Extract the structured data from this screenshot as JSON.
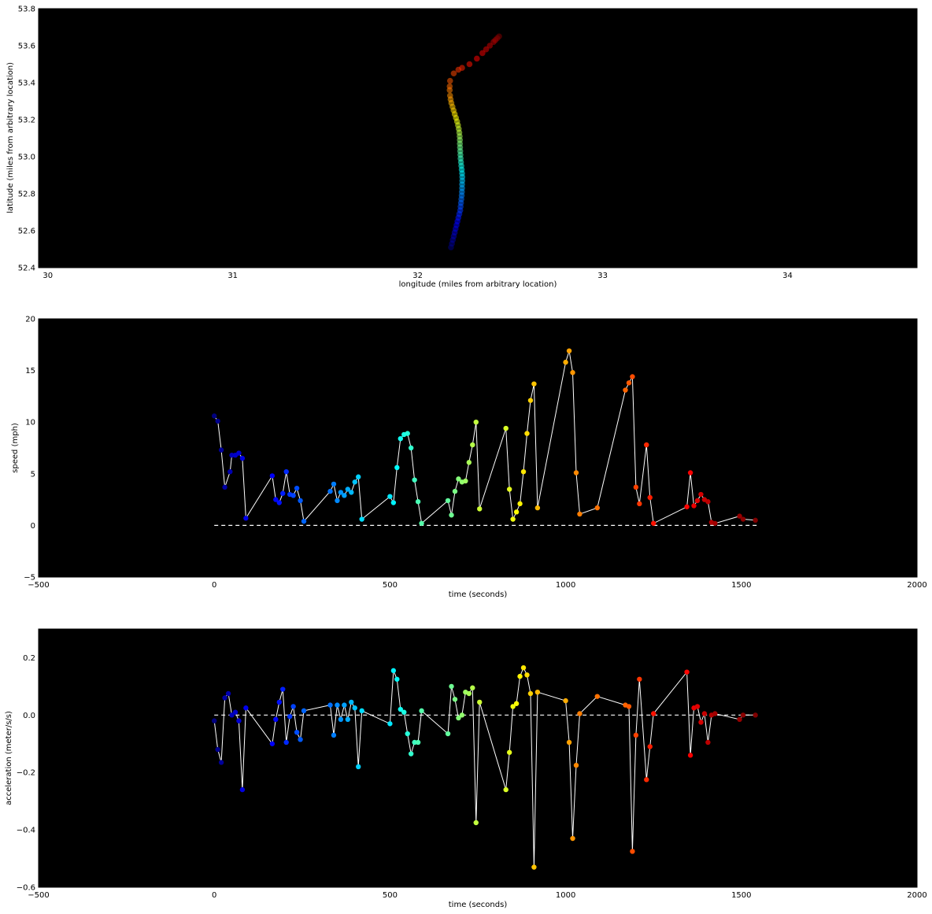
{
  "chart_data": [
    {
      "type": "scatter",
      "xlabel": "longitude (miles from arbitrary location)",
      "ylabel": "latitude (miles from arbitrary location)",
      "xlim": [
        29.95,
        34.7
      ],
      "ylim": [
        52.4,
        53.8
      ],
      "xticks": [
        30,
        31,
        32,
        33,
        34
      ],
      "yticks": [
        52.4,
        52.6,
        52.8,
        53.0,
        53.2,
        53.4,
        53.6,
        53.8
      ],
      "background": "#000000",
      "colormap": "jet",
      "grid": false,
      "points": [
        [
          32.18,
          52.51
        ],
        [
          32.185,
          52.53
        ],
        [
          32.19,
          52.55
        ],
        [
          32.195,
          52.57
        ],
        [
          32.2,
          52.59
        ],
        [
          32.205,
          52.61
        ],
        [
          32.21,
          52.63
        ],
        [
          32.215,
          52.65
        ],
        [
          32.22,
          52.67
        ],
        [
          32.225,
          52.69
        ],
        [
          32.23,
          52.71
        ],
        [
          32.232,
          52.73
        ],
        [
          32.234,
          52.75
        ],
        [
          32.236,
          52.77
        ],
        [
          32.238,
          52.79
        ],
        [
          32.239,
          52.81
        ],
        [
          32.24,
          52.83
        ],
        [
          32.24,
          52.85
        ],
        [
          32.241,
          52.87
        ],
        [
          32.241,
          52.89
        ],
        [
          32.24,
          52.91
        ],
        [
          32.238,
          52.93
        ],
        [
          32.236,
          52.95
        ],
        [
          32.234,
          52.97
        ],
        [
          32.232,
          52.99
        ],
        [
          32.231,
          53.01
        ],
        [
          32.23,
          53.03
        ],
        [
          32.229,
          53.05
        ],
        [
          32.228,
          53.07
        ],
        [
          32.228,
          53.09
        ],
        [
          32.227,
          53.11
        ],
        [
          32.225,
          53.13
        ],
        [
          32.222,
          53.15
        ],
        [
          32.218,
          53.17
        ],
        [
          32.213,
          53.19
        ],
        [
          32.207,
          53.21
        ],
        [
          32.2,
          53.23
        ],
        [
          32.194,
          53.25
        ],
        [
          32.188,
          53.27
        ],
        [
          32.182,
          53.29
        ],
        [
          32.178,
          53.31
        ],
        [
          32.175,
          53.33
        ],
        [
          32.173,
          53.36
        ],
        [
          32.173,
          53.38
        ],
        [
          32.175,
          53.41
        ],
        [
          32.195,
          53.45
        ],
        [
          32.22,
          53.47
        ],
        [
          32.24,
          53.48
        ],
        [
          32.28,
          53.5
        ],
        [
          32.32,
          53.53
        ],
        [
          32.35,
          53.56
        ],
        [
          32.37,
          53.58
        ],
        [
          32.39,
          53.6
        ],
        [
          32.41,
          53.62
        ],
        [
          32.42,
          53.63
        ],
        [
          32.43,
          53.64
        ],
        [
          32.44,
          53.65
        ]
      ]
    },
    {
      "type": "line",
      "xlabel": "time (seconds)",
      "ylabel": "speed (mph)",
      "xlim": [
        -500,
        2000
      ],
      "ylim": [
        -5,
        20
      ],
      "xticks": [
        -500,
        0,
        500,
        1000,
        1500,
        2000
      ],
      "yticks": [
        -5,
        0,
        5,
        10,
        15,
        20
      ],
      "background": "#000000",
      "line_color": "#ffffff",
      "reference_line": {
        "y": 0,
        "style": "dashed",
        "x_range": [
          0,
          1545
        ]
      },
      "colormap": "jet",
      "points": [
        [
          0,
          10.6
        ],
        [
          10,
          10.1
        ],
        [
          20,
          7.3
        ],
        [
          30,
          3.7
        ],
        [
          45,
          5.2
        ],
        [
          50,
          6.8
        ],
        [
          60,
          6.8
        ],
        [
          70,
          7.0
        ],
        [
          80,
          6.5
        ],
        [
          90,
          0.7
        ],
        [
          165,
          4.8
        ],
        [
          175,
          2.5
        ],
        [
          185,
          2.2
        ],
        [
          195,
          3.1
        ],
        [
          205,
          5.2
        ],
        [
          215,
          3.0
        ],
        [
          225,
          2.9
        ],
        [
          235,
          3.6
        ],
        [
          245,
          2.4
        ],
        [
          255,
          0.4
        ],
        [
          330,
          3.3
        ],
        [
          340,
          4.0
        ],
        [
          350,
          2.4
        ],
        [
          360,
          3.2
        ],
        [
          370,
          2.9
        ],
        [
          380,
          3.5
        ],
        [
          390,
          3.2
        ],
        [
          400,
          4.2
        ],
        [
          410,
          4.7
        ],
        [
          420,
          0.6
        ],
        [
          500,
          2.8
        ],
        [
          510,
          2.2
        ],
        [
          520,
          5.6
        ],
        [
          530,
          8.4
        ],
        [
          540,
          8.8
        ],
        [
          550,
          8.9
        ],
        [
          560,
          7.5
        ],
        [
          570,
          4.4
        ],
        [
          580,
          2.3
        ],
        [
          590,
          0.2
        ],
        [
          665,
          2.4
        ],
        [
          675,
          1.0
        ],
        [
          685,
          3.3
        ],
        [
          695,
          4.5
        ],
        [
          705,
          4.2
        ],
        [
          715,
          4.3
        ],
        [
          725,
          6.1
        ],
        [
          735,
          7.8
        ],
        [
          745,
          10.0
        ],
        [
          755,
          1.6
        ],
        [
          830,
          9.4
        ],
        [
          840,
          3.5
        ],
        [
          850,
          0.6
        ],
        [
          860,
          1.3
        ],
        [
          870,
          2.1
        ],
        [
          880,
          5.2
        ],
        [
          890,
          8.9
        ],
        [
          900,
          12.1
        ],
        [
          910,
          13.7
        ],
        [
          920,
          1.7
        ],
        [
          1000,
          15.8
        ],
        [
          1010,
          16.9
        ],
        [
          1020,
          14.8
        ],
        [
          1030,
          5.1
        ],
        [
          1040,
          1.1
        ],
        [
          1090,
          1.7
        ],
        [
          1170,
          13.1
        ],
        [
          1180,
          13.8
        ],
        [
          1190,
          14.4
        ],
        [
          1200,
          3.7
        ],
        [
          1210,
          2.1
        ],
        [
          1230,
          7.8
        ],
        [
          1240,
          2.7
        ],
        [
          1250,
          0.2
        ],
        [
          1345,
          1.8
        ],
        [
          1355,
          5.1
        ],
        [
          1365,
          1.9
        ],
        [
          1375,
          2.4
        ],
        [
          1385,
          3.0
        ],
        [
          1395,
          2.5
        ],
        [
          1405,
          2.3
        ],
        [
          1415,
          0.3
        ],
        [
          1425,
          0.2
        ],
        [
          1495,
          0.9
        ],
        [
          1505,
          0.6
        ],
        [
          1540,
          0.5
        ]
      ]
    },
    {
      "type": "line",
      "xlabel": "time (seconds)",
      "ylabel": "acceleration (meter/s/s)",
      "xlim": [
        -500,
        2000
      ],
      "ylim": [
        -0.6,
        0.3
      ],
      "xticks": [
        -500,
        0,
        500,
        1000,
        1500,
        2000
      ],
      "yticks": [
        -0.6,
        -0.4,
        -0.2,
        0.0,
        0.2
      ],
      "ytick_labels": [
        "−0.6",
        "−0.4",
        "−0.2",
        "0.0",
        "0.2"
      ],
      "background": "#000000",
      "line_color": "#ffffff",
      "reference_line": {
        "y": 0,
        "style": "dashed",
        "x_range": [
          0,
          1545
        ]
      },
      "colormap": "jet",
      "points": [
        [
          0,
          -0.02
        ],
        [
          10,
          -0.12
        ],
        [
          20,
          -0.165
        ],
        [
          30,
          0.06
        ],
        [
          40,
          0.075
        ],
        [
          50,
          0.0
        ],
        [
          60,
          0.01
        ],
        [
          70,
          -0.02
        ],
        [
          80,
          -0.26
        ],
        [
          90,
          0.025
        ],
        [
          165,
          -0.1
        ],
        [
          175,
          -0.015
        ],
        [
          185,
          0.045
        ],
        [
          195,
          0.09
        ],
        [
          205,
          -0.095
        ],
        [
          215,
          -0.005
        ],
        [
          225,
          0.03
        ],
        [
          235,
          -0.06
        ],
        [
          245,
          -0.085
        ],
        [
          255,
          0.015
        ],
        [
          330,
          0.035
        ],
        [
          340,
          -0.07
        ],
        [
          350,
          0.035
        ],
        [
          360,
          -0.015
        ],
        [
          370,
          0.035
        ],
        [
          380,
          -0.015
        ],
        [
          390,
          0.045
        ],
        [
          400,
          0.025
        ],
        [
          410,
          -0.18
        ],
        [
          420,
          0.015
        ],
        [
          500,
          -0.03
        ],
        [
          510,
          0.155
        ],
        [
          520,
          0.125
        ],
        [
          530,
          0.02
        ],
        [
          540,
          0.01
        ],
        [
          550,
          -0.065
        ],
        [
          560,
          -0.135
        ],
        [
          570,
          -0.095
        ],
        [
          580,
          -0.095
        ],
        [
          590,
          0.015
        ],
        [
          665,
          -0.065
        ],
        [
          675,
          0.1
        ],
        [
          685,
          0.055
        ],
        [
          695,
          -0.01
        ],
        [
          705,
          0.0
        ],
        [
          715,
          0.08
        ],
        [
          725,
          0.075
        ],
        [
          735,
          0.095
        ],
        [
          745,
          -0.375
        ],
        [
          755,
          0.045
        ],
        [
          830,
          -0.26
        ],
        [
          840,
          -0.13
        ],
        [
          850,
          0.03
        ],
        [
          860,
          0.04
        ],
        [
          870,
          0.135
        ],
        [
          880,
          0.165
        ],
        [
          890,
          0.14
        ],
        [
          900,
          0.075
        ],
        [
          910,
          -0.53
        ],
        [
          920,
          0.08
        ],
        [
          1000,
          0.05
        ],
        [
          1010,
          -0.095
        ],
        [
          1020,
          -0.43
        ],
        [
          1030,
          -0.175
        ],
        [
          1040,
          0.005
        ],
        [
          1090,
          0.065
        ],
        [
          1170,
          0.035
        ],
        [
          1180,
          0.03
        ],
        [
          1190,
          -0.475
        ],
        [
          1200,
          -0.07
        ],
        [
          1210,
          0.125
        ],
        [
          1230,
          -0.225
        ],
        [
          1240,
          -0.11
        ],
        [
          1250,
          0.005
        ],
        [
          1345,
          0.15
        ],
        [
          1355,
          -0.14
        ],
        [
          1365,
          0.025
        ],
        [
          1375,
          0.03
        ],
        [
          1385,
          -0.025
        ],
        [
          1395,
          0.005
        ],
        [
          1405,
          -0.095
        ],
        [
          1415,
          0.0
        ],
        [
          1425,
          0.005
        ],
        [
          1495,
          -0.015
        ],
        [
          1505,
          0.0
        ],
        [
          1540,
          0.0
        ]
      ]
    }
  ]
}
